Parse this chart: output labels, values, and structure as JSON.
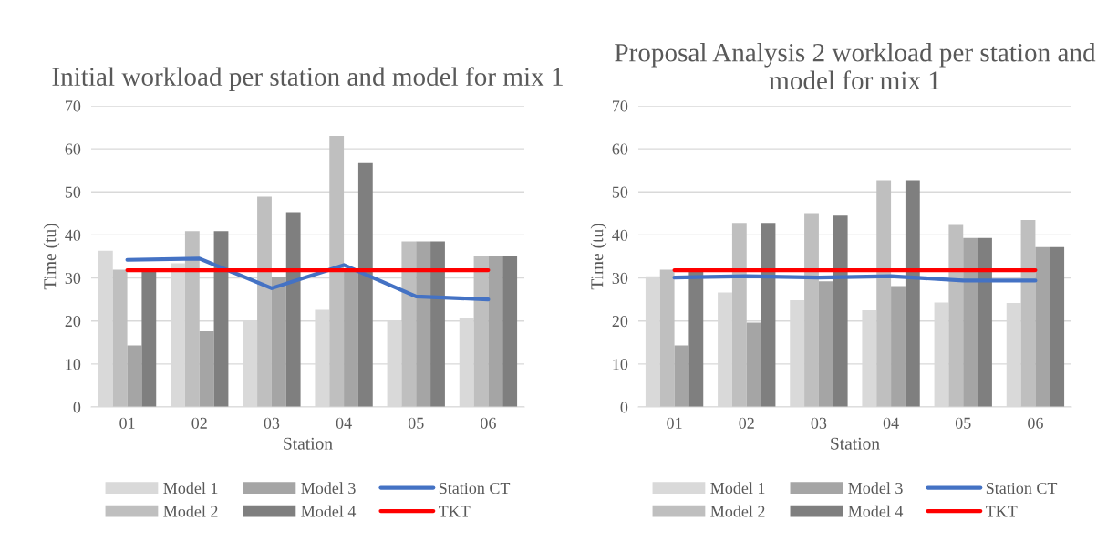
{
  "chart_data": [
    {
      "type": "bar",
      "title": "Initial workload per station and model for mix 1",
      "xlabel": "Station",
      "ylabel": "Time (tu)",
      "categories": [
        "01",
        "02",
        "03",
        "04",
        "05",
        "06"
      ],
      "ylim": [
        0,
        70
      ],
      "yticks": [
        0,
        10,
        20,
        30,
        40,
        50,
        60,
        70
      ],
      "grid": "y",
      "legend": "bottom",
      "series": [
        {
          "name": "Model 1",
          "color": "#d9d9d9",
          "values": [
            36.3,
            33.4,
            20.0,
            22.6,
            20.1,
            20.6
          ]
        },
        {
          "name": "Model 2",
          "color": "#bfbfbf",
          "values": [
            31.9,
            40.9,
            48.9,
            63.0,
            38.5,
            35.2
          ]
        },
        {
          "name": "Model 3",
          "color": "#a5a5a5",
          "values": [
            14.3,
            17.6,
            30.1,
            32.0,
            38.5,
            35.2
          ]
        },
        {
          "name": "Model 4",
          "color": "#7f7f7f",
          "values": [
            32.0,
            40.9,
            45.3,
            56.7,
            38.5,
            35.2
          ]
        },
        {
          "name": "Station CT",
          "type": "line",
          "color": "#4472c4",
          "values": [
            34.2,
            34.5,
            27.6,
            33.0,
            25.7,
            25.0
          ]
        },
        {
          "name": "TKT",
          "type": "line",
          "color": "#ff0000",
          "values": [
            31.8,
            31.8,
            31.8,
            31.8,
            31.8,
            31.8
          ]
        }
      ]
    },
    {
      "type": "bar",
      "title": "Proposal Analysis 2 workload per station and model for mix 1",
      "xlabel": "Station",
      "ylabel": "Time (tu)",
      "categories": [
        "01",
        "02",
        "03",
        "04",
        "05",
        "06"
      ],
      "ylim": [
        0,
        70
      ],
      "yticks": [
        0,
        10,
        20,
        30,
        40,
        50,
        60,
        70
      ],
      "grid": "y",
      "legend": "bottom",
      "series": [
        {
          "name": "Model 1",
          "color": "#d9d9d9",
          "values": [
            30.4,
            26.6,
            24.8,
            22.5,
            24.3,
            24.2
          ]
        },
        {
          "name": "Model 2",
          "color": "#bfbfbf",
          "values": [
            31.9,
            42.8,
            45.1,
            52.7,
            42.3,
            43.5
          ]
        },
        {
          "name": "Model 3",
          "color": "#a5a5a5",
          "values": [
            14.3,
            19.6,
            29.2,
            28.1,
            39.3,
            37.2
          ]
        },
        {
          "name": "Model 4",
          "color": "#7f7f7f",
          "values": [
            32.0,
            42.8,
            44.5,
            52.7,
            39.3,
            37.2
          ]
        },
        {
          "name": "Station CT",
          "type": "line",
          "color": "#4472c4",
          "values": [
            30.1,
            30.4,
            30.1,
            30.4,
            29.4,
            29.4
          ]
        },
        {
          "name": "TKT",
          "type": "line",
          "color": "#ff0000",
          "values": [
            31.8,
            31.8,
            31.8,
            31.8,
            31.8,
            31.8
          ]
        }
      ]
    }
  ]
}
